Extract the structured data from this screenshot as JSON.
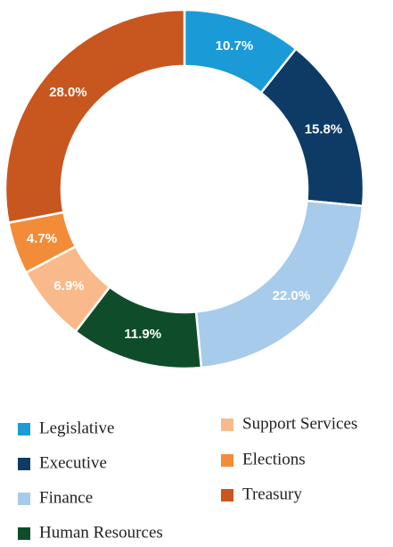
{
  "chart_data": {
    "type": "donut",
    "categories": [
      "Legislative",
      "Executive",
      "Finance",
      "Human Resources",
      "Support Services",
      "Elections",
      "Treasury"
    ],
    "values": [
      10.7,
      15.8,
      22.0,
      11.9,
      6.9,
      4.7,
      28.0
    ],
    "value_labels": [
      "10.7%",
      "15.8%",
      "22.0%",
      "11.9%",
      "6.9%",
      "4.7%",
      "28.0%"
    ],
    "colors": [
      "#1a9ad6",
      "#0d3b66",
      "#a7cbea",
      "#0f4d2a",
      "#f9b98a",
      "#f28c38",
      "#c8561f"
    ]
  }
}
